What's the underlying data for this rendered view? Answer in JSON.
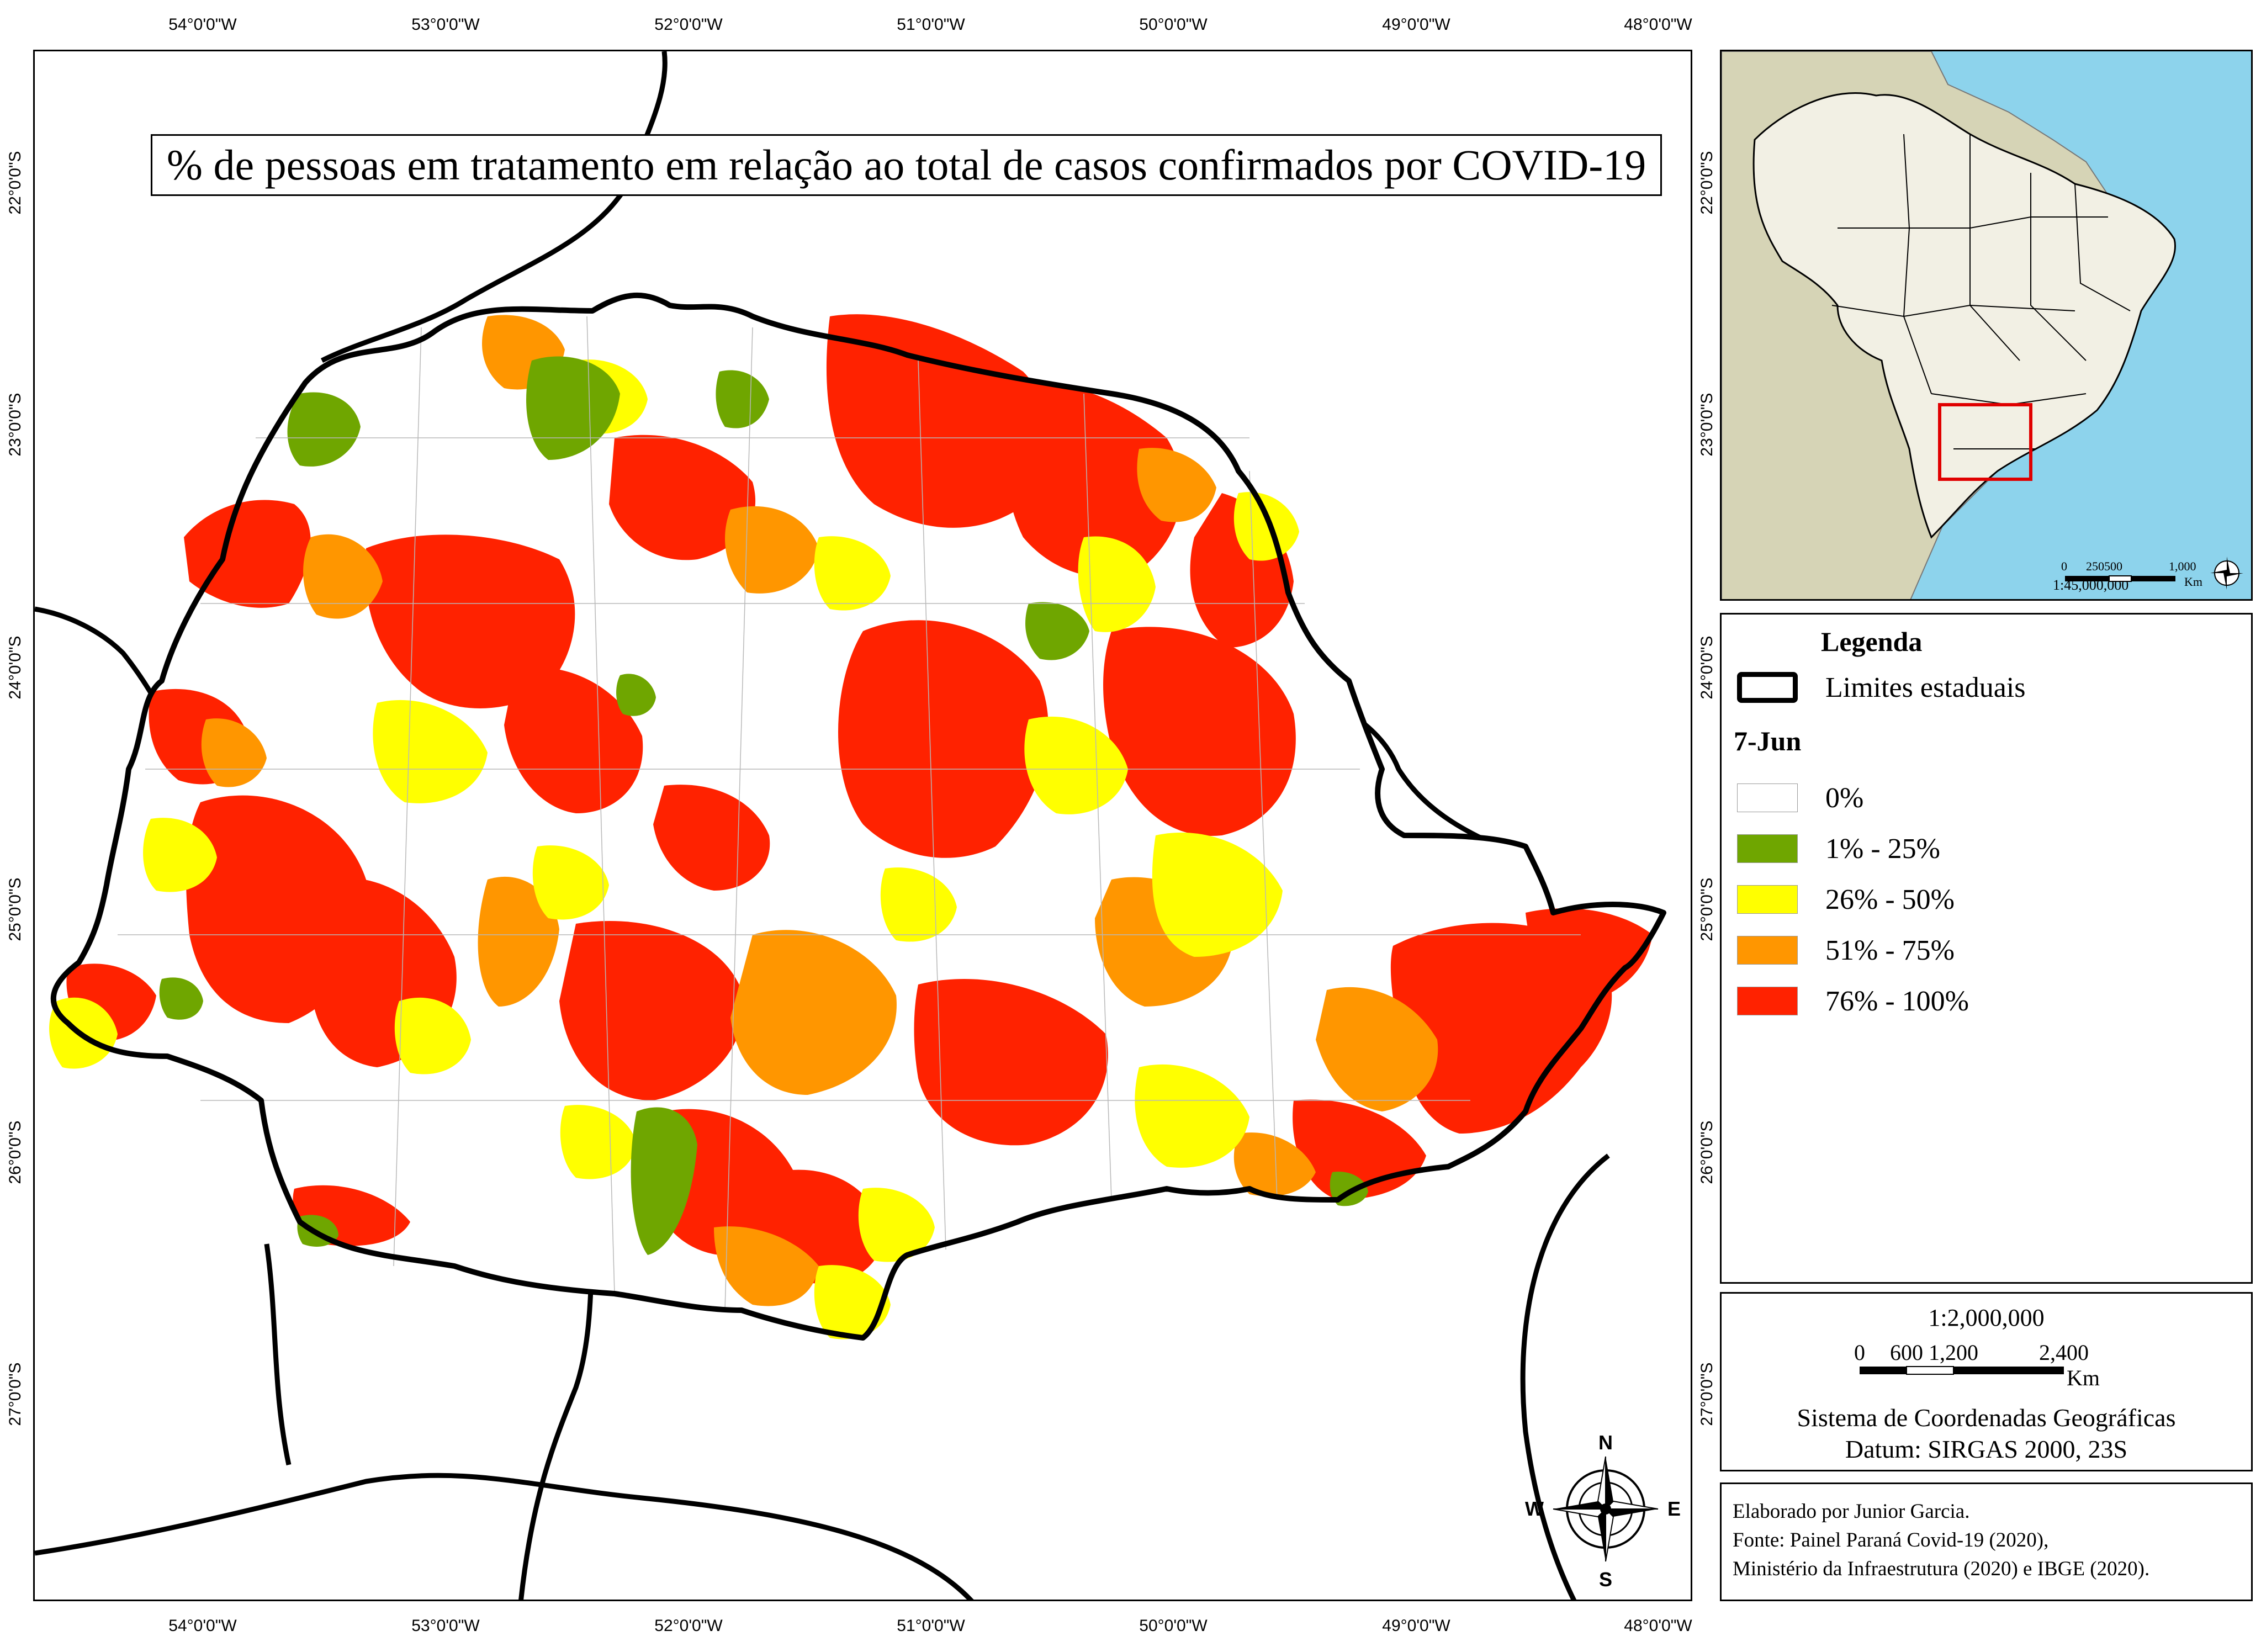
{
  "map": {
    "title": "% de pessoas em tratamento em relação ao total de casos confirmados por COVID-19",
    "lon_ticks": [
      "54°0'0\"W",
      "53°0'0\"W",
      "52°0'0\"W",
      "51°0'0\"W",
      "50°0'0\"W",
      "49°0'0\"W",
      "48°0'0\"W"
    ],
    "lat_ticks": [
      "22°0'0\"S",
      "23°0'0\"S",
      "24°0'0\"S",
      "25°0'0\"S",
      "26°0'0\"S",
      "27°0'0\"S"
    ],
    "compass": {
      "n": "N",
      "s": "S",
      "e": "E",
      "w": "W"
    }
  },
  "locator": {
    "scale": "1:45,000,000",
    "bar_labels": [
      "0",
      "250500",
      "1,000"
    ],
    "unit": "Km",
    "colors": {
      "ocean": "#8dd3ec",
      "brazil": "#f2f0e4",
      "neighbors": "#d6d4b6",
      "focus_box": "#e00000"
    }
  },
  "legend": {
    "title": "Legenda",
    "state_limits_label": "Limites estaduais",
    "date_label": "7-Jun",
    "classes": [
      {
        "label": "0%",
        "color": "#ffffff"
      },
      {
        "label": "1% - 25%",
        "color": "#6fa600"
      },
      {
        "label": "26% - 50%",
        "color": "#ffff00"
      },
      {
        "label": "51% - 75%",
        "color": "#ff9600"
      },
      {
        "label": "76% - 100%",
        "color": "#ff2200"
      }
    ]
  },
  "scale_panel": {
    "ratio": "1:2,000,000",
    "bar_labels": [
      "0",
      "600",
      "1,200",
      "2,400"
    ],
    "unit": "Km",
    "crs": "Sistema de Coordenadas Geográficas",
    "datum": "Datum: SIRGAS 2000, 23S"
  },
  "credits": {
    "author": "Elaborado por Junior Garcia.",
    "source1": "Fonte: Painel Paraná Covid-19 (2020),",
    "source2": "Ministério da Infraestrutura (2020) e IBGE (2020)."
  }
}
